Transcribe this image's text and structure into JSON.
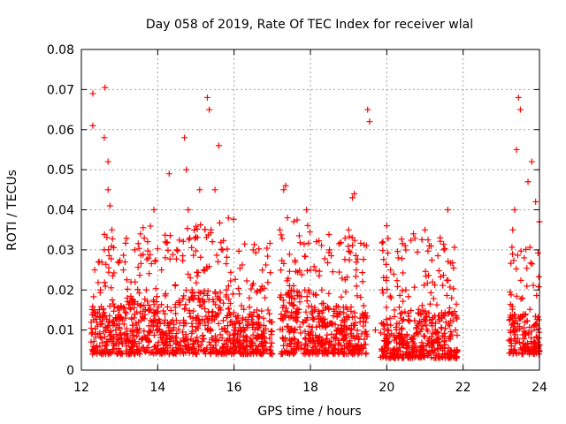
{
  "chart_data": {
    "type": "scatter",
    "title": "Day 058 of 2019, Rate Of TEC Index for receiver wlal",
    "xlabel": "GPS time / hours",
    "ylabel": "ROTI / TECUs",
    "xlim": [
      12,
      24
    ],
    "ylim": [
      0,
      0.08
    ],
    "grid": true,
    "marker": "+",
    "color": "#ff0000",
    "x_ticks": [
      12,
      14,
      16,
      18,
      20,
      22,
      24
    ],
    "x_tick_labels": [
      "12",
      "14",
      "16",
      "18",
      "20",
      "22",
      "24"
    ],
    "y_ticks": [
      0,
      0.01,
      0.02,
      0.03,
      0.04,
      0.05,
      0.06,
      0.07,
      0.08
    ],
    "y_tick_labels": [
      "0",
      "0.01",
      "0.02",
      "0.03",
      "0.04",
      "0.05",
      "0.06",
      "0.07",
      "0.08"
    ],
    "series": [
      {
        "name": "ROTI",
        "x": [
          12.3,
          12.3,
          12.35,
          12.6,
          12.62,
          12.7,
          12.75,
          12.4,
          12.5,
          12.6,
          12.7,
          12.8,
          12.9,
          13.0,
          13.1,
          13.2,
          13.3,
          13.4,
          13.5,
          13.6,
          13.7,
          13.8,
          13.9,
          14.0,
          14.1,
          14.2,
          14.3,
          14.35,
          14.5,
          14.6,
          14.7,
          14.75,
          14.8,
          14.9,
          15.0,
          15.1,
          15.2,
          15.3,
          15.35,
          15.4,
          15.5,
          15.6,
          15.7,
          15.8,
          15.9,
          16.0,
          16.2,
          16.4,
          16.5,
          16.6,
          16.8,
          17.0,
          17.2,
          17.3,
          17.35,
          17.4,
          17.5,
          17.6,
          17.8,
          17.9,
          18.0,
          18.1,
          18.3,
          18.5,
          18.7,
          19.0,
          19.1,
          19.15,
          19.2,
          19.3,
          19.5,
          19.55,
          19.7,
          19.9,
          20.0,
          20.1,
          20.2,
          20.3,
          20.5,
          20.7,
          20.9,
          21.0,
          21.2,
          21.4,
          21.5,
          21.6,
          21.7,
          21.8,
          23.3,
          23.35,
          23.4,
          23.45,
          23.5,
          23.6,
          23.7,
          23.8,
          23.9,
          24.0
        ],
        "y": [
          0.061,
          0.069,
          0.025,
          0.058,
          0.0705,
          0.052,
          0.041,
          0.012,
          0.02,
          0.03,
          0.045,
          0.035,
          0.01,
          0.015,
          0.025,
          0.018,
          0.022,
          0.03,
          0.012,
          0.008,
          0.02,
          0.015,
          0.04,
          0.01,
          0.025,
          0.032,
          0.049,
          0.012,
          0.03,
          0.006,
          0.058,
          0.05,
          0.04,
          0.02,
          0.01,
          0.045,
          0.025,
          0.068,
          0.065,
          0.035,
          0.045,
          0.056,
          0.03,
          0.02,
          0.012,
          0.008,
          0.01,
          0.018,
          0.03,
          0.015,
          0.008,
          0.012,
          0.035,
          0.045,
          0.046,
          0.038,
          0.02,
          0.01,
          0.012,
          0.04,
          0.025,
          0.015,
          0.012,
          0.03,
          0.01,
          0.035,
          0.043,
          0.044,
          0.025,
          0.012,
          0.065,
          0.062,
          0.01,
          0.032,
          0.036,
          0.025,
          0.015,
          0.028,
          0.02,
          0.034,
          0.012,
          0.035,
          0.022,
          0.033,
          0.03,
          0.04,
          0.018,
          0.01,
          0.035,
          0.04,
          0.055,
          0.068,
          0.065,
          0.028,
          0.047,
          0.052,
          0.042,
          0.037
        ]
      }
    ],
    "bulk": {
      "description_free": true,
      "segments": [
        {
          "x": [
            12.25,
            13.2
          ],
          "y": [
            0.004,
            0.016
          ]
        },
        {
          "x": [
            13.2,
            14.0
          ],
          "y": [
            0.004,
            0.018
          ]
        },
        {
          "x": [
            14.0,
            14.6
          ],
          "y": [
            0.004,
            0.016
          ]
        },
        {
          "x": [
            14.65,
            16.0
          ],
          "y": [
            0.004,
            0.02
          ]
        },
        {
          "x": [
            16.0,
            17.0
          ],
          "y": [
            0.004,
            0.014
          ]
        },
        {
          "x": [
            17.2,
            18.0
          ],
          "y": [
            0.004,
            0.02
          ]
        },
        {
          "x": [
            18.0,
            19.5
          ],
          "y": [
            0.004,
            0.016
          ]
        },
        {
          "x": [
            19.8,
            21.85
          ],
          "y": [
            0.003,
            0.015
          ]
        },
        {
          "x": [
            23.2,
            24.0
          ],
          "y": [
            0.004,
            0.014
          ]
        }
      ]
    }
  }
}
